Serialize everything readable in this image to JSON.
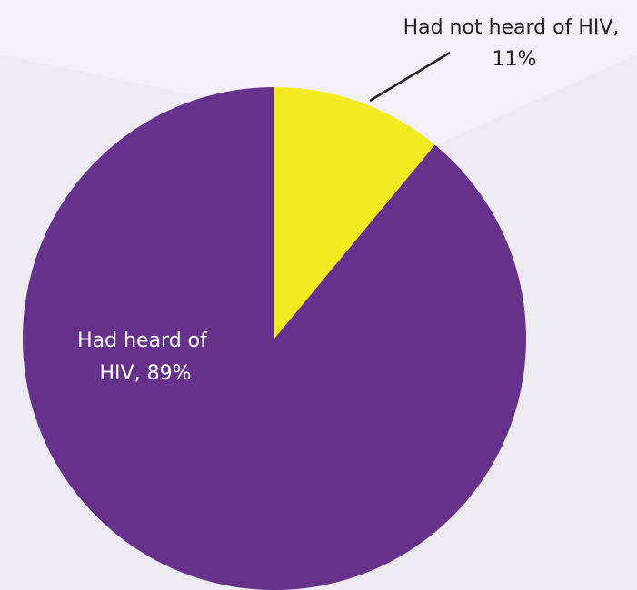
{
  "chart_data": {
    "type": "pie",
    "title": "",
    "categories": [
      "Had heard of HIV",
      "Had not heard of HIV"
    ],
    "values": [
      89,
      11
    ],
    "unit": "%",
    "colors": [
      "#65318b",
      "#f3ea21"
    ],
    "start_angle_deg": 0,
    "direction": "clockwise",
    "labels": [
      {
        "lines": [
          "Had heard of",
          "HIV, 89%"
        ],
        "color": "#ffffff",
        "placement": "inside"
      },
      {
        "lines": [
          "Had not heard of HIV,",
          "11%"
        ],
        "color": "#222222",
        "placement": "outside-top-right",
        "leader_line": true
      }
    ],
    "legend": "none",
    "background_color": "#eeeaf2"
  }
}
